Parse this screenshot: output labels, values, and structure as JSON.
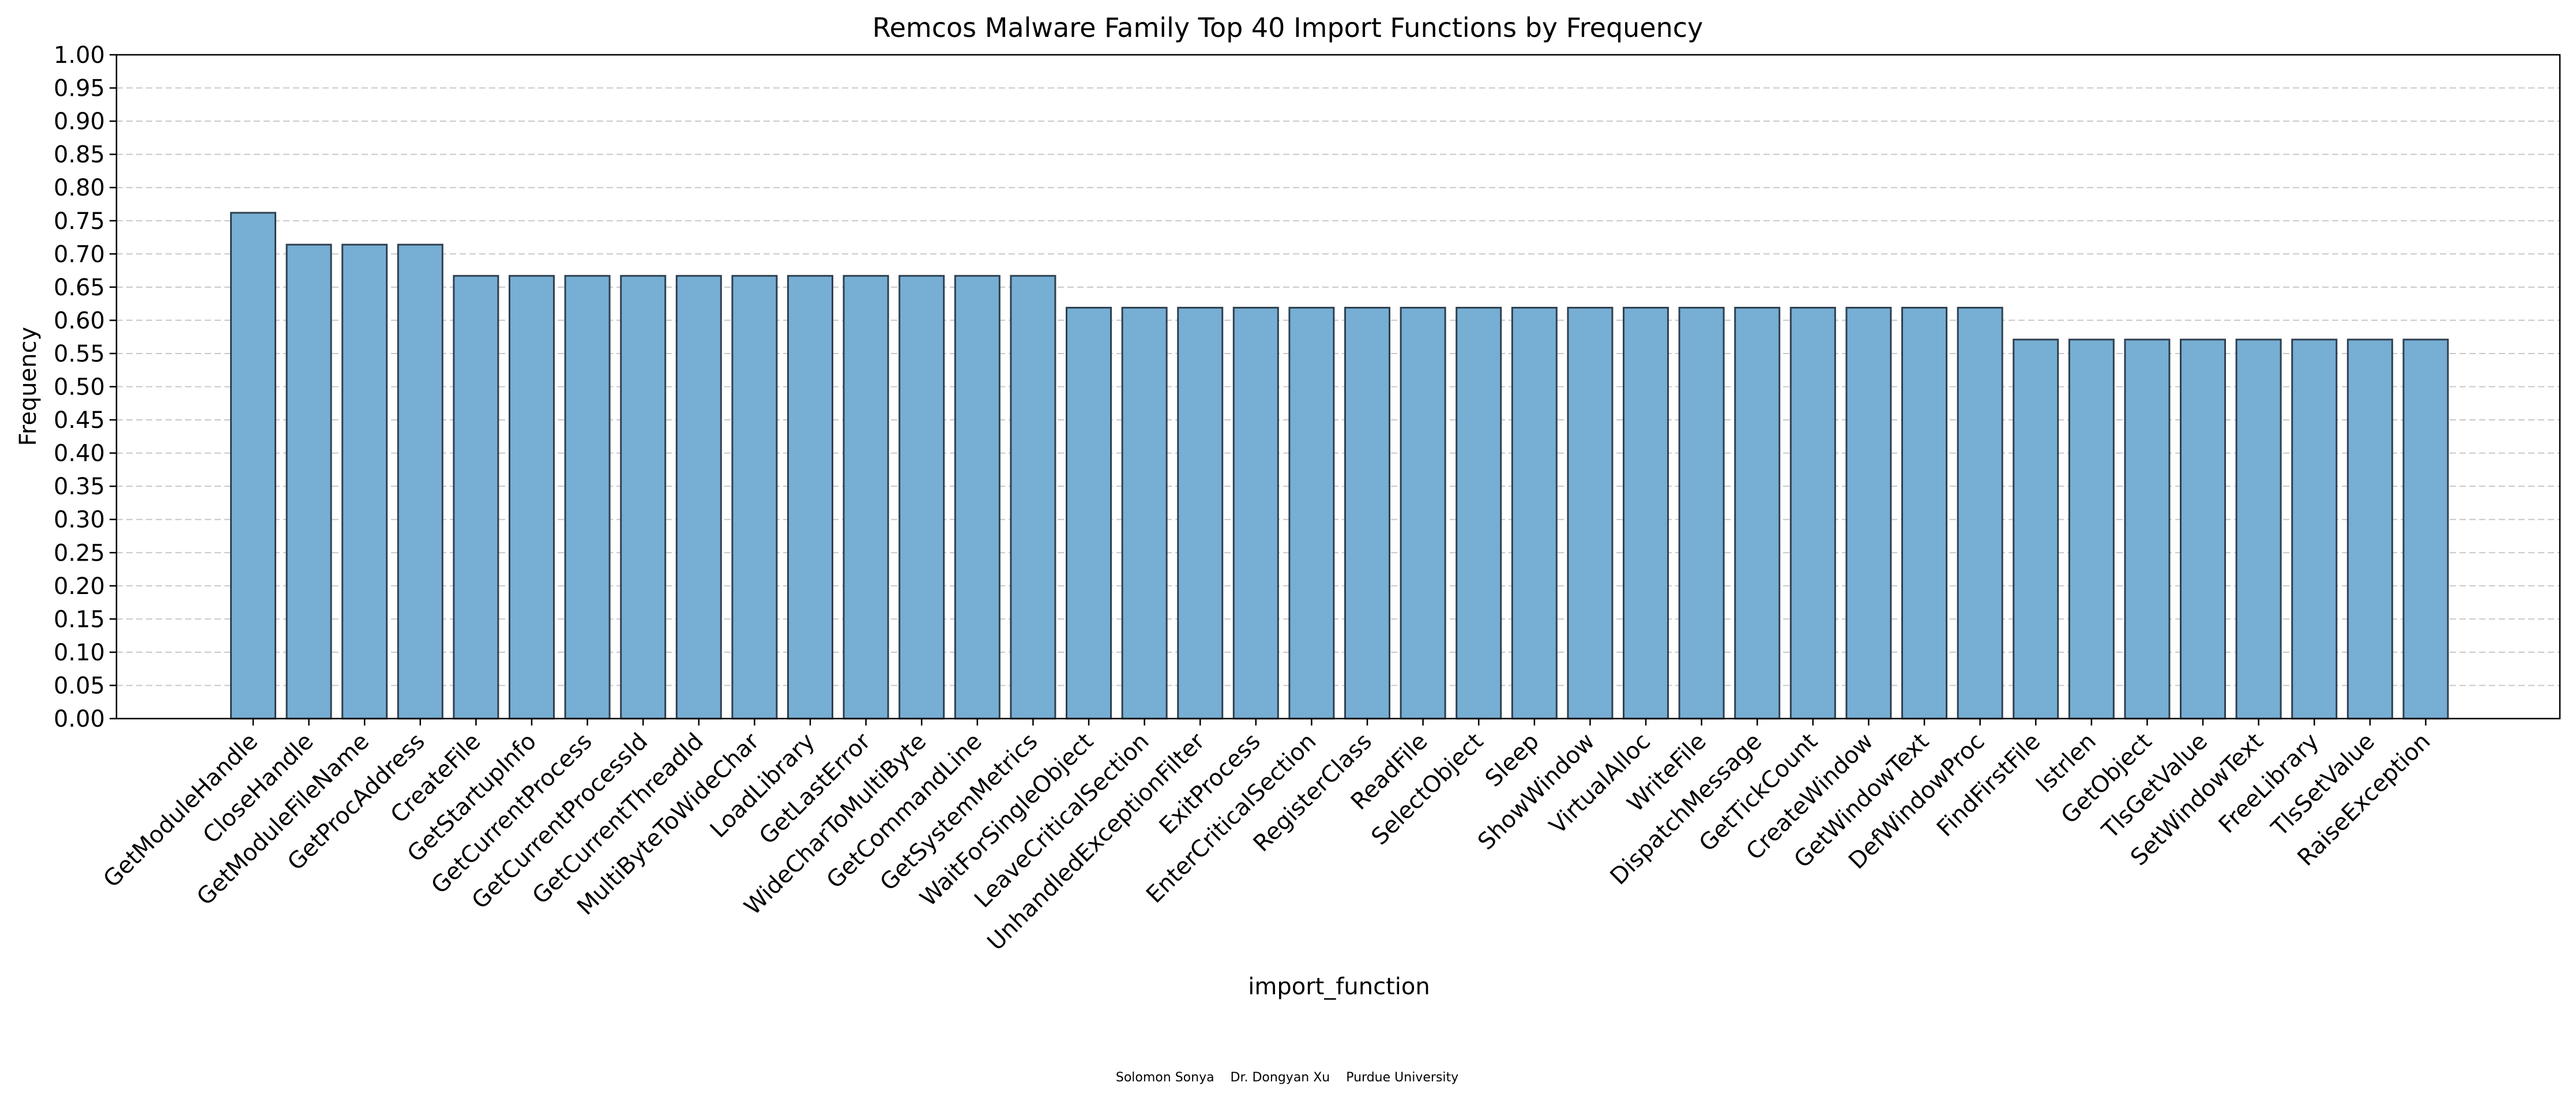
{
  "chart_data": {
    "type": "bar",
    "title": "Remcos Malware Family Top 40 Import Functions by Frequency",
    "xlabel": "import_function",
    "ylabel": "Frequency",
    "ylim": [
      0,
      1.0
    ],
    "yticks": [
      "0.00",
      "0.05",
      "0.10",
      "0.15",
      "0.20",
      "0.25",
      "0.30",
      "0.35",
      "0.40",
      "0.45",
      "0.50",
      "0.55",
      "0.60",
      "0.65",
      "0.70",
      "0.75",
      "0.80",
      "0.85",
      "0.90",
      "0.95",
      "1.00"
    ],
    "grid": "horizontal dashed",
    "categories": [
      "GetModuleHandle",
      "CloseHandle",
      "GetModuleFileName",
      "GetProcAddress",
      "CreateFile",
      "GetStartupInfo",
      "GetCurrentProcess",
      "GetCurrentProcessId",
      "GetCurrentThreadId",
      "MultiByteToWideChar",
      "LoadLibrary",
      "GetLastError",
      "WideCharToMultiByte",
      "GetCommandLine",
      "GetSystemMetrics",
      "WaitForSingleObject",
      "LeaveCriticalSection",
      "UnhandledExceptionFilter",
      "ExitProcess",
      "EnterCriticalSection",
      "RegisterClass",
      "ReadFile",
      "SelectObject",
      "Sleep",
      "ShowWindow",
      "VirtualAlloc",
      "WriteFile",
      "DispatchMessage",
      "GetTickCount",
      "CreateWindow",
      "GetWindowText",
      "DefWindowProc",
      "FindFirstFile",
      "lstrlen",
      "GetObject",
      "TlsGetValue",
      "SetWindowText",
      "FreeLibrary",
      "TlsSetValue",
      "RaiseException"
    ],
    "values": [
      0.762,
      0.714,
      0.714,
      0.714,
      0.667,
      0.667,
      0.667,
      0.667,
      0.667,
      0.667,
      0.667,
      0.667,
      0.667,
      0.667,
      0.667,
      0.619,
      0.619,
      0.619,
      0.619,
      0.619,
      0.619,
      0.619,
      0.619,
      0.619,
      0.619,
      0.619,
      0.619,
      0.619,
      0.619,
      0.619,
      0.619,
      0.619,
      0.571,
      0.571,
      0.571,
      0.571,
      0.571,
      0.571,
      0.571,
      0.571
    ],
    "bar_color": "#77aed3",
    "edge_color": "#2f4050"
  },
  "credits": "Solomon Sonya    Dr. Dongyan Xu    Purdue University"
}
